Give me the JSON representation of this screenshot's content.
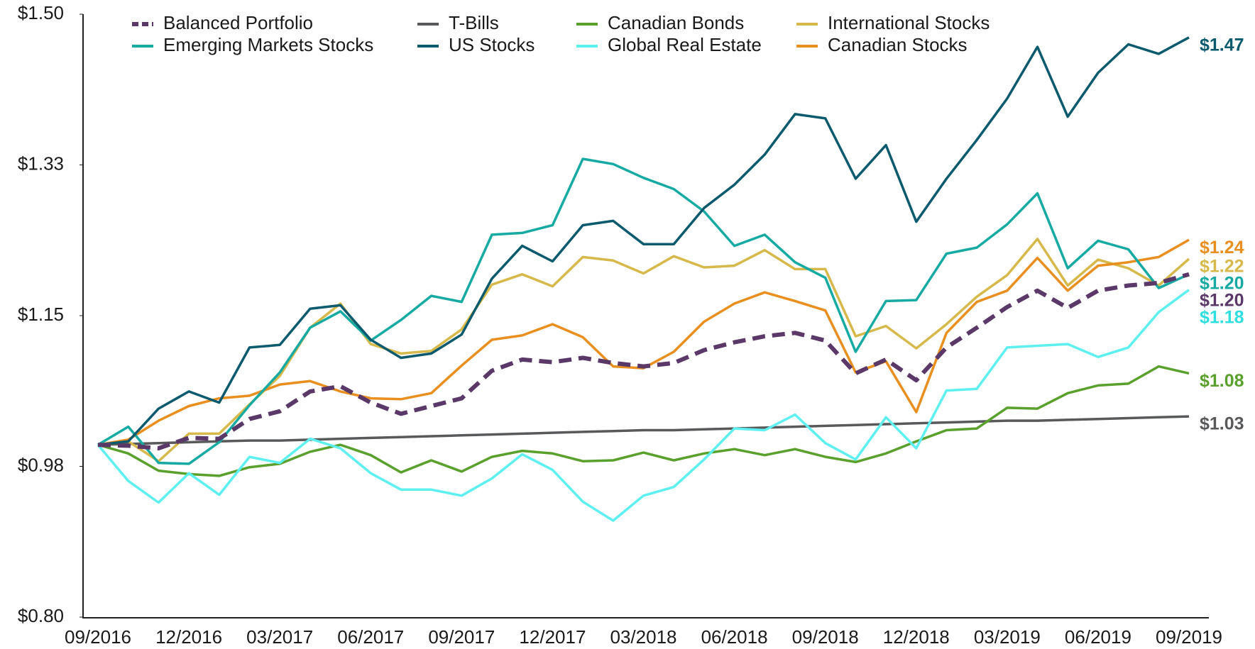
{
  "chart_data": {
    "type": "line",
    "categories": [
      "09/2016",
      null,
      null,
      "12/2016",
      null,
      null,
      "03/2017",
      null,
      null,
      "06/2017",
      null,
      null,
      "09/2017",
      null,
      null,
      "12/2017",
      null,
      null,
      "03/2018",
      null,
      null,
      "06/2018",
      null,
      null,
      "09/2018",
      null,
      null,
      "12/2018",
      null,
      null,
      "03/2019",
      null,
      null,
      "06/2019",
      null,
      null,
      "09/2019"
    ],
    "ylim": [
      0.8,
      1.5
    ],
    "yticks": [
      {
        "value": 0.8,
        "label": "$0.80"
      },
      {
        "value": 0.975,
        "label": "$0.98"
      },
      {
        "value": 1.15,
        "label": "$1.15"
      },
      {
        "value": 1.325,
        "label": "$1.33"
      },
      {
        "value": 1.5,
        "label": "$1.50"
      }
    ],
    "grid": false,
    "legend": "top",
    "series": [
      {
        "name": "Balanced Portfolio",
        "color": "#5a3868",
        "dashed": true,
        "values": [
          1.0,
          0.999,
          0.996,
          1.008,
          1.007,
          1.03,
          1.039,
          1.062,
          1.068,
          1.049,
          1.036,
          1.045,
          1.054,
          1.086,
          1.099,
          1.096,
          1.101,
          1.095,
          1.091,
          1.095,
          1.11,
          1.119,
          1.126,
          1.13,
          1.121,
          1.083,
          1.099,
          1.075,
          1.113,
          1.136,
          1.16,
          1.179,
          1.159,
          1.179,
          1.185,
          1.188,
          1.198
        ],
        "value_labels": [
          null,
          null,
          null,
          null,
          null,
          null,
          null,
          null,
          null,
          null,
          null,
          null,
          null,
          null,
          null,
          null,
          null,
          null,
          null,
          null,
          null,
          null,
          null,
          null,
          null,
          null,
          null,
          null,
          null,
          null,
          null,
          null,
          null,
          null,
          null,
          null,
          "$1.20"
        ]
      },
      {
        "name": "T-Bills",
        "color": "#58595b",
        "values": [
          1.0,
          1.001,
          1.002,
          1.003,
          1.004,
          1.005,
          1.005,
          1.006,
          1.007,
          1.008,
          1.009,
          1.01,
          1.011,
          1.012,
          1.013,
          1.014,
          1.015,
          1.016,
          1.017,
          1.017,
          1.018,
          1.019,
          1.02,
          1.021,
          1.022,
          1.023,
          1.024,
          1.025,
          1.026,
          1.027,
          1.028,
          1.028,
          1.029,
          1.03,
          1.031,
          1.032,
          1.033
        ],
        "value_labels": [
          null,
          null,
          null,
          null,
          null,
          null,
          null,
          null,
          null,
          null,
          null,
          null,
          null,
          null,
          null,
          null,
          null,
          null,
          null,
          null,
          null,
          null,
          null,
          null,
          null,
          null,
          null,
          null,
          null,
          null,
          null,
          null,
          null,
          null,
          null,
          null,
          "$1.03"
        ]
      },
      {
        "name": "Canadian Bonds",
        "color": "#5aa02c",
        "values": [
          1.0,
          0.99,
          0.97,
          0.966,
          0.964,
          0.974,
          0.978,
          0.992,
          1.0,
          0.988,
          0.968,
          0.982,
          0.969,
          0.986,
          0.993,
          0.99,
          0.981,
          0.982,
          0.991,
          0.982,
          0.99,
          0.995,
          0.988,
          0.995,
          0.986,
          0.98,
          0.99,
          1.004,
          1.017,
          1.019,
          1.043,
          1.042,
          1.06,
          1.069,
          1.071,
          1.091,
          1.083
        ],
        "value_labels": [
          null,
          null,
          null,
          null,
          null,
          null,
          null,
          null,
          null,
          null,
          null,
          null,
          null,
          null,
          null,
          null,
          null,
          null,
          null,
          null,
          null,
          null,
          null,
          null,
          null,
          null,
          null,
          null,
          null,
          null,
          null,
          null,
          null,
          null,
          null,
          null,
          "$1.08"
        ]
      },
      {
        "name": "International Stocks",
        "color": "#d6b94a",
        "values": [
          1.0,
          1.004,
          0.981,
          1.013,
          1.013,
          1.047,
          1.08,
          1.136,
          1.164,
          1.117,
          1.106,
          1.109,
          1.134,
          1.186,
          1.198,
          1.184,
          1.218,
          1.214,
          1.199,
          1.219,
          1.206,
          1.208,
          1.226,
          1.204,
          1.204,
          1.126,
          1.138,
          1.112,
          1.14,
          1.172,
          1.197,
          1.239,
          1.185,
          1.215,
          1.205,
          1.185,
          1.216
        ],
        "value_labels": [
          null,
          null,
          null,
          null,
          null,
          null,
          null,
          null,
          null,
          null,
          null,
          null,
          null,
          null,
          null,
          null,
          null,
          null,
          null,
          null,
          null,
          null,
          null,
          null,
          null,
          null,
          null,
          null,
          null,
          null,
          null,
          null,
          null,
          null,
          null,
          null,
          "$1.22"
        ]
      },
      {
        "name": "Emerging Markets Stocks",
        "color": "#17aaa3",
        "values": [
          1.0,
          1.021,
          0.979,
          0.978,
          1.003,
          1.046,
          1.084,
          1.136,
          1.155,
          1.121,
          1.145,
          1.173,
          1.166,
          1.244,
          1.246,
          1.255,
          1.332,
          1.326,
          1.31,
          1.297,
          1.271,
          1.231,
          1.244,
          1.212,
          1.194,
          1.108,
          1.167,
          1.168,
          1.222,
          1.229,
          1.256,
          1.292,
          1.205,
          1.237,
          1.227,
          1.182,
          1.198
        ],
        "value_labels": [
          null,
          null,
          null,
          null,
          null,
          null,
          null,
          null,
          null,
          null,
          null,
          null,
          null,
          null,
          null,
          null,
          null,
          null,
          null,
          null,
          null,
          null,
          null,
          null,
          null,
          null,
          null,
          null,
          null,
          null,
          null,
          null,
          null,
          null,
          null,
          null,
          "$1.20"
        ]
      },
      {
        "name": "US Stocks",
        "color": "#0c5a6d",
        "values": [
          1.0,
          1.004,
          1.042,
          1.062,
          1.049,
          1.113,
          1.116,
          1.158,
          1.162,
          1.122,
          1.101,
          1.106,
          1.128,
          1.193,
          1.231,
          1.213,
          1.255,
          1.26,
          1.233,
          1.233,
          1.275,
          1.302,
          1.337,
          1.384,
          1.379,
          1.309,
          1.348,
          1.259,
          1.309,
          1.354,
          1.402,
          1.462,
          1.381,
          1.432,
          1.465,
          1.454,
          1.473
        ],
        "value_labels": [
          null,
          null,
          null,
          null,
          null,
          null,
          null,
          null,
          null,
          null,
          null,
          null,
          null,
          null,
          null,
          null,
          null,
          null,
          null,
          null,
          null,
          null,
          null,
          null,
          null,
          null,
          null,
          null,
          null,
          null,
          null,
          null,
          null,
          null,
          null,
          null,
          "$1.47"
        ]
      },
      {
        "name": "Global Real Estate",
        "color": "#5ef0f0",
        "values": [
          1.0,
          0.958,
          0.933,
          0.967,
          0.942,
          0.986,
          0.979,
          1.007,
          0.996,
          0.967,
          0.948,
          0.948,
          0.941,
          0.961,
          0.989,
          0.971,
          0.934,
          0.912,
          0.941,
          0.951,
          0.983,
          1.019,
          1.017,
          1.035,
          1.002,
          0.983,
          1.032,
          0.996,
          1.063,
          1.065,
          1.113,
          1.115,
          1.117,
          1.102,
          1.113,
          1.154,
          1.18
        ],
        "value_labels": [
          null,
          null,
          null,
          null,
          null,
          null,
          null,
          null,
          null,
          null,
          null,
          null,
          null,
          null,
          null,
          null,
          null,
          null,
          null,
          null,
          null,
          null,
          null,
          null,
          null,
          null,
          null,
          null,
          null,
          null,
          null,
          null,
          null,
          null,
          null,
          null,
          "$1.18"
        ]
      },
      {
        "name": "Canadian Stocks",
        "color": "#e88f1f",
        "values": [
          1.0,
          1.006,
          1.028,
          1.045,
          1.054,
          1.057,
          1.07,
          1.074,
          1.062,
          1.054,
          1.053,
          1.06,
          1.092,
          1.122,
          1.127,
          1.14,
          1.125,
          1.091,
          1.089,
          1.108,
          1.143,
          1.164,
          1.177,
          1.167,
          1.156,
          1.084,
          1.097,
          1.038,
          1.13,
          1.166,
          1.179,
          1.217,
          1.179,
          1.208,
          1.212,
          1.218,
          1.238
        ],
        "value_labels": [
          null,
          null,
          null,
          null,
          null,
          null,
          null,
          null,
          null,
          null,
          null,
          null,
          null,
          null,
          null,
          null,
          null,
          null,
          null,
          null,
          null,
          null,
          null,
          null,
          null,
          null,
          null,
          null,
          null,
          null,
          null,
          null,
          null,
          null,
          null,
          null,
          "$1.24"
        ]
      }
    ]
  }
}
